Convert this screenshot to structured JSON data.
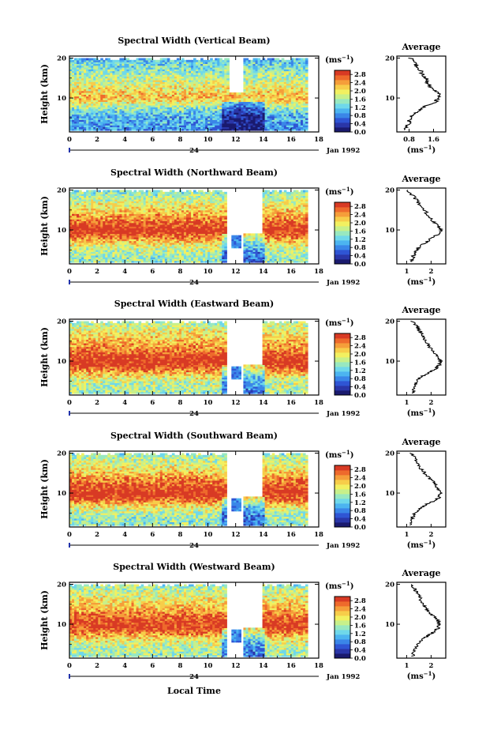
{
  "figure": {
    "xlabel": "Local Time",
    "ylabel": "Height (km)",
    "date_label": "Jan 1992",
    "day_label": "24",
    "colorbar_unit": "(ms",
    "unit_exponent": "−1",
    "unit_close": ")",
    "average_title": "Average"
  },
  "chart_data": [
    {
      "type": "heatmap",
      "title": "Spectral Width (Vertical Beam)",
      "x_range": [
        0,
        18
      ],
      "x_ticks": [
        0,
        2,
        4,
        6,
        8,
        10,
        12,
        14,
        16,
        18
      ],
      "y_range": [
        1.5,
        20.5
      ],
      "y_ticks": [
        10,
        20
      ],
      "data_extent_hours": [
        0,
        17.2
      ],
      "colorbar_ticks": [
        "0.0",
        "0.4",
        "0.8",
        "1.2",
        "1.6",
        "2.0",
        "2.4",
        "2.8"
      ],
      "colorbar_range": [
        0,
        3.0
      ],
      "profile_height_km": [
        2,
        3,
        4,
        5,
        6,
        7,
        8,
        9,
        10,
        11,
        12,
        13,
        14,
        15,
        16,
        17,
        18,
        19,
        20
      ],
      "profile_width_ms": [
        0.7,
        0.75,
        0.8,
        0.85,
        0.95,
        1.15,
        1.35,
        1.65,
        1.8,
        1.75,
        1.6,
        1.5,
        1.4,
        1.35,
        1.25,
        1.15,
        1.05,
        0.95,
        0.85
      ],
      "profile_xlim": [
        0.4,
        2.0
      ],
      "profile_xticks": [
        "0.8",
        "1.6"
      ],
      "profile_xtick_values": [
        0.8,
        1.6
      ]
    },
    {
      "type": "heatmap",
      "title": "Spectral Width (Northward Beam)",
      "x_range": [
        0,
        18
      ],
      "x_ticks": [
        0,
        2,
        4,
        6,
        8,
        10,
        12,
        14,
        16,
        18
      ],
      "y_range": [
        1.5,
        20.5
      ],
      "y_ticks": [
        10,
        20
      ],
      "data_extent_hours": [
        0,
        17.2
      ],
      "colorbar_ticks": [
        "0.0",
        "0.4",
        "0.8",
        "1.2",
        "1.6",
        "2.0",
        "2.4",
        "2.8"
      ],
      "colorbar_range": [
        0,
        3.0
      ],
      "profile_height_km": [
        2,
        3,
        4,
        5,
        6,
        7,
        8,
        9,
        10,
        11,
        12,
        13,
        14,
        15,
        16,
        17,
        18,
        19,
        20
      ],
      "profile_width_ms": [
        1.2,
        1.25,
        1.3,
        1.4,
        1.55,
        1.8,
        2.05,
        2.3,
        2.4,
        2.3,
        2.1,
        1.95,
        1.85,
        1.7,
        1.6,
        1.45,
        1.35,
        1.2,
        1.05
      ],
      "profile_xlim": [
        0.6,
        2.6
      ],
      "profile_xticks": [
        "1",
        "2"
      ],
      "profile_xtick_values": [
        1,
        2
      ]
    },
    {
      "type": "heatmap",
      "title": "Spectral Width (Eastward Beam)",
      "x_range": [
        0,
        18
      ],
      "x_ticks": [
        0,
        2,
        4,
        6,
        8,
        10,
        12,
        14,
        16,
        18
      ],
      "y_range": [
        1.5,
        20.5
      ],
      "y_ticks": [
        10,
        20
      ],
      "data_extent_hours": [
        0,
        17.2
      ],
      "colorbar_ticks": [
        "0.0",
        "0.4",
        "0.8",
        "1.2",
        "1.6",
        "2.0",
        "2.4",
        "2.8"
      ],
      "colorbar_range": [
        0,
        3.0
      ],
      "profile_height_km": [
        2,
        3,
        4,
        5,
        6,
        7,
        8,
        9,
        10,
        11,
        12,
        13,
        14,
        15,
        16,
        17,
        18,
        19,
        20
      ],
      "profile_width_ms": [
        1.25,
        1.3,
        1.35,
        1.45,
        1.6,
        1.85,
        2.15,
        2.35,
        2.4,
        2.3,
        2.15,
        2.0,
        1.9,
        1.8,
        1.7,
        1.6,
        1.5,
        1.4,
        1.2
      ],
      "profile_xlim": [
        0.6,
        2.6
      ],
      "profile_xticks": [
        "1",
        "2"
      ],
      "profile_xtick_values": [
        1,
        2
      ]
    },
    {
      "type": "heatmap",
      "title": "Spectral Width (Southward Beam)",
      "x_range": [
        0,
        18
      ],
      "x_ticks": [
        0,
        2,
        4,
        6,
        8,
        10,
        12,
        14,
        16,
        18
      ],
      "y_range": [
        1.5,
        20.5
      ],
      "y_ticks": [
        10,
        20
      ],
      "data_extent_hours": [
        0,
        17.2
      ],
      "colorbar_ticks": [
        "0.0",
        "0.4",
        "0.8",
        "1.2",
        "1.6",
        "2.0",
        "2.4",
        "2.8"
      ],
      "colorbar_range": [
        0,
        3.0
      ],
      "profile_height_km": [
        2,
        3,
        4,
        5,
        6,
        7,
        8,
        9,
        10,
        11,
        12,
        13,
        14,
        15,
        16,
        17,
        18,
        19,
        20
      ],
      "profile_width_ms": [
        1.2,
        1.2,
        1.25,
        1.35,
        1.5,
        1.75,
        2.1,
        2.35,
        2.4,
        2.3,
        2.2,
        2.05,
        1.9,
        1.75,
        1.6,
        1.5,
        1.4,
        1.3,
        1.15
      ],
      "profile_xlim": [
        0.6,
        2.6
      ],
      "profile_xticks": [
        "1",
        "2"
      ],
      "profile_xtick_values": [
        1,
        2
      ]
    },
    {
      "type": "heatmap",
      "title": "Spectral Width (Westward Beam)",
      "x_range": [
        0,
        18
      ],
      "x_ticks": [
        0,
        2,
        4,
        6,
        8,
        10,
        12,
        14,
        16,
        18
      ],
      "y_range": [
        1.5,
        20.5
      ],
      "y_ticks": [
        10,
        20
      ],
      "data_extent_hours": [
        0,
        17.2
      ],
      "colorbar_ticks": [
        "0.0",
        "0.4",
        "0.8",
        "1.2",
        "1.6",
        "2.0",
        "2.4",
        "2.8"
      ],
      "colorbar_range": [
        0,
        3.0
      ],
      "profile_height_km": [
        2,
        3,
        4,
        5,
        6,
        7,
        8,
        9,
        10,
        11,
        12,
        13,
        14,
        15,
        16,
        17,
        18,
        19,
        20
      ],
      "profile_width_ms": [
        1.25,
        1.3,
        1.35,
        1.45,
        1.6,
        1.85,
        2.1,
        2.3,
        2.35,
        2.25,
        2.1,
        1.95,
        1.8,
        1.7,
        1.6,
        1.5,
        1.4,
        1.3,
        1.2
      ],
      "profile_xlim": [
        0.6,
        2.6
      ],
      "profile_xticks": [
        "1",
        "2"
      ],
      "profile_xtick_values": [
        1,
        2
      ]
    }
  ]
}
